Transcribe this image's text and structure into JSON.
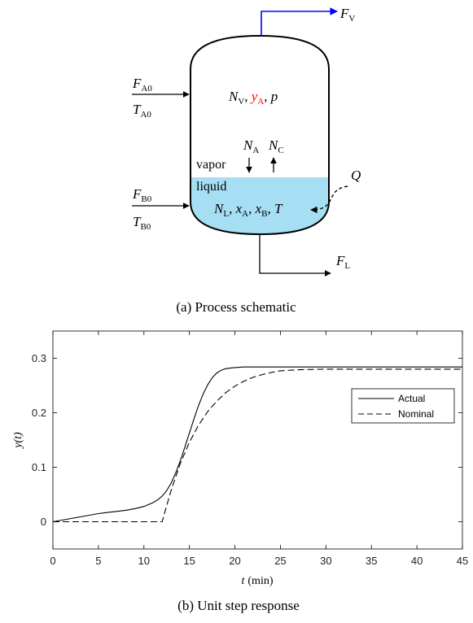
{
  "schematic": {
    "caption": "(a) Process schematic",
    "fv": {
      "main": "F",
      "sub": "V"
    },
    "fa0": {
      "main": "F",
      "sub": "A0"
    },
    "ta0": {
      "main": "T",
      "sub": "A0"
    },
    "fb0": {
      "main": "F",
      "sub": "B0"
    },
    "tb0": {
      "main": "T",
      "sub": "B0"
    },
    "fl": {
      "main": "F",
      "sub": "L"
    },
    "q": "Q",
    "vapor_label": "vapor",
    "liquid_label": "liquid",
    "vapor_state": {
      "n": "N",
      "n_sub": "V",
      "sep1": ", ",
      "y": "y",
      "y_sub": "A",
      "sep2": ", ",
      "p": "p"
    },
    "transfer": {
      "na": "N",
      "na_sub": "A",
      "nc": "N",
      "nc_sub": "C"
    },
    "liquid_state": {
      "n": "N",
      "n_sub": "L",
      "sep1": ", ",
      "xa": "x",
      "xa_sub": "A",
      "sep2": ", ",
      "xb": "x",
      "xb_sub": "B",
      "sep3": ", ",
      "t": "T"
    },
    "colors": {
      "vapor_arrow": "#0000ff",
      "liquid_fill": "#a6def4",
      "highlight": "#ff0000"
    }
  },
  "plot": {
    "caption": "(b) Unit step response",
    "ylabel": "y(t)",
    "xlabel_var": "t",
    "xlabel_unit": "(min)",
    "legend": [
      "Actual",
      "Nominal"
    ]
  },
  "chart_data": {
    "type": "line",
    "xlim": [
      0,
      45
    ],
    "ylim": [
      -0.05,
      0.35
    ],
    "x_ticks": [
      0,
      5,
      10,
      15,
      20,
      25,
      30,
      35,
      40,
      45
    ],
    "y_ticks": [
      0,
      0.1,
      0.2,
      0.3
    ],
    "y_tick_labels": [
      "0",
      "0.1",
      "0.2",
      "0.3"
    ],
    "grid": false,
    "legend_position": "right",
    "series": [
      {
        "name": "Actual",
        "style": "solid",
        "x": [
          0,
          1,
          2,
          3,
          4,
          5,
          6,
          7,
          8,
          9,
          10,
          11,
          11.5,
          12,
          12.5,
          13,
          13.5,
          14,
          14.5,
          15,
          15.5,
          16,
          16.5,
          17,
          17.5,
          18,
          18.5,
          19,
          19.5,
          20,
          21,
          22,
          25,
          30,
          35,
          40,
          45
        ],
        "y": [
          0,
          0.003,
          0.006,
          0.009,
          0.012,
          0.015,
          0.017,
          0.019,
          0.021,
          0.024,
          0.028,
          0.035,
          0.04,
          0.047,
          0.057,
          0.071,
          0.09,
          0.112,
          0.137,
          0.163,
          0.189,
          0.213,
          0.234,
          0.251,
          0.264,
          0.273,
          0.278,
          0.281,
          0.282,
          0.283,
          0.284,
          0.284,
          0.284,
          0.284,
          0.284,
          0.284,
          0.284
        ]
      },
      {
        "name": "Nominal",
        "style": "dashed",
        "x": [
          0,
          11,
          12,
          13,
          14,
          15,
          16,
          17,
          18,
          19,
          20,
          21,
          22,
          23,
          24,
          25,
          27,
          30,
          33,
          36,
          40,
          45
        ],
        "y": [
          0,
          0,
          0,
          0.058,
          0.107,
          0.146,
          0.177,
          0.202,
          0.221,
          0.237,
          0.249,
          0.258,
          0.265,
          0.27,
          0.274,
          0.277,
          0.279,
          0.28,
          0.28,
          0.28,
          0.28,
          0.28
        ]
      }
    ]
  }
}
